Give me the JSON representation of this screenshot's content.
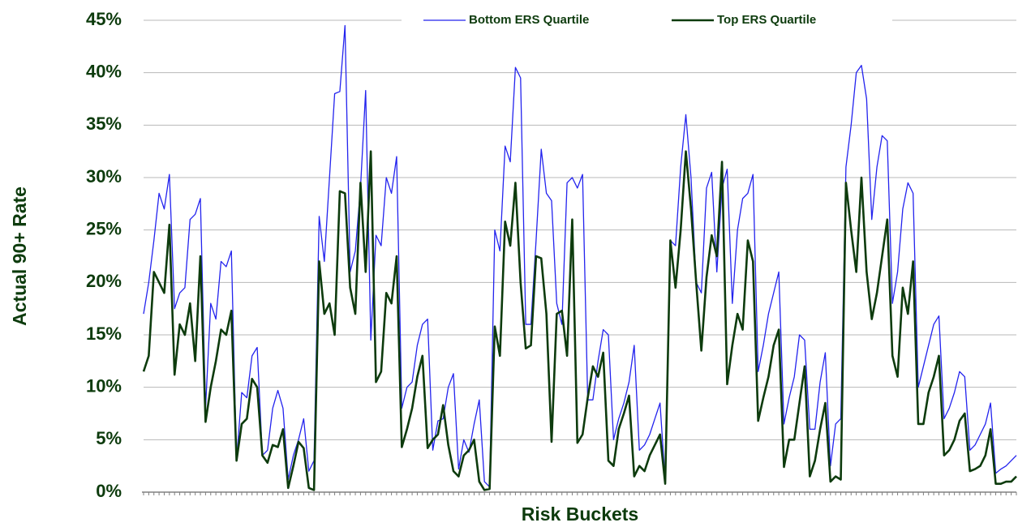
{
  "chart_data": {
    "type": "line",
    "y_axis_label": "Actual 90+ Rate",
    "x_axis_label": "Risk Buckets",
    "legend": "top",
    "grid": true,
    "ylim": [
      0,
      45
    ],
    "yticks": [
      {
        "value": 0,
        "label": "0%"
      },
      {
        "value": 5,
        "label": "5%"
      },
      {
        "value": 10,
        "label": "10%"
      },
      {
        "value": 15,
        "label": "15%"
      },
      {
        "value": 20,
        "label": "20%"
      },
      {
        "value": 25,
        "label": "25%"
      },
      {
        "value": 30,
        "label": "30%"
      },
      {
        "value": 35,
        "label": "35%"
      },
      {
        "value": 40,
        "label": "40%"
      },
      {
        "value": 45,
        "label": "45%"
      }
    ],
    "categories": [
      null,
      null,
      null,
      null,
      null,
      null,
      null,
      null,
      null,
      null,
      null,
      null,
      null,
      null,
      null,
      null,
      null,
      null,
      null,
      null,
      null,
      null,
      null,
      null,
      null,
      null,
      null,
      null,
      null,
      null,
      null,
      null,
      null,
      null,
      null,
      null,
      null,
      null,
      null,
      null,
      null,
      null,
      null,
      null,
      null,
      null,
      null,
      null,
      null,
      null,
      null,
      null,
      null,
      null,
      null,
      null,
      null,
      null,
      null,
      null,
      null,
      null,
      null,
      null,
      null,
      null,
      null,
      null,
      null,
      null,
      null,
      null,
      null,
      null,
      null,
      null,
      null,
      null,
      null,
      null,
      null,
      null,
      null,
      null,
      null,
      null,
      null,
      null,
      null,
      null,
      null,
      null,
      null,
      null,
      null,
      null,
      null,
      null,
      null,
      null,
      null,
      null,
      null,
      null,
      null,
      null,
      null,
      null,
      null,
      null,
      null,
      null,
      null,
      null,
      null,
      null,
      null,
      null,
      null,
      null,
      null,
      null,
      null,
      null,
      null,
      null,
      null,
      null,
      null,
      null,
      null,
      null,
      null,
      null,
      null,
      null,
      null,
      null,
      null,
      null,
      null,
      null,
      null,
      null,
      null,
      null,
      null,
      null,
      null,
      null,
      null,
      null,
      null,
      null,
      null,
      null,
      null,
      null,
      null,
      null,
      null,
      null,
      null,
      null,
      null,
      null,
      null,
      null,
      null,
      null
    ],
    "series": [
      {
        "name": "Bottom ERS Quartile",
        "color": "#2323ee",
        "width": 1.3,
        "values": [
          17,
          20,
          24,
          28.5,
          27,
          30.3,
          17.5,
          19,
          19.5,
          26,
          26.5,
          28,
          8,
          18,
          16.5,
          22,
          21.5,
          23,
          3,
          9.5,
          9,
          13,
          13.8,
          3.5,
          4,
          8,
          9.7,
          8,
          1.2,
          3.5,
          5,
          7,
          2,
          3,
          26.3,
          22,
          30,
          38,
          38.2,
          44.5,
          21,
          23,
          29,
          38.3,
          14.5,
          24.5,
          23.5,
          30,
          28.5,
          32,
          8,
          10,
          10.5,
          14,
          16,
          16.5,
          4,
          6.8,
          7,
          10,
          11.3,
          2.2,
          5,
          3.8,
          6.5,
          8.8,
          1,
          0.5,
          25,
          23,
          33,
          31.5,
          40.5,
          39.5,
          16,
          16,
          24,
          32.7,
          28.5,
          27.8,
          18,
          16,
          29.5,
          30,
          29,
          30.3,
          8.8,
          8.8,
          12.5,
          15.5,
          15,
          5,
          7,
          8.5,
          10.5,
          14,
          4,
          4.5,
          5.5,
          7,
          8.5,
          1,
          24,
          23.5,
          31,
          36,
          30,
          20,
          19,
          29,
          30.5,
          21,
          29,
          30.8,
          18,
          25,
          28,
          28.5,
          30.3,
          11.5,
          14,
          17,
          19,
          21,
          6.5,
          9,
          11,
          15,
          14.5,
          6,
          6,
          10.5,
          13.3,
          2.5,
          6.5,
          7,
          31,
          35,
          40,
          40.7,
          37.5,
          26,
          31,
          34,
          33.5,
          18,
          21,
          27,
          29.5,
          28.5,
          10,
          12,
          14,
          16,
          16.8,
          7,
          8,
          9.5,
          11.5,
          11,
          4,
          4.5,
          5.5,
          6.5,
          8.5,
          1.8,
          2.2,
          2.5,
          3,
          3.5
        ]
      },
      {
        "name": "Top ERS Quartile",
        "color": "#0d3b0d",
        "width": 2.6,
        "values": [
          11.5,
          13,
          21,
          20,
          19,
          25.5,
          11.2,
          16,
          15,
          18,
          12.5,
          22.5,
          6.7,
          10,
          12.5,
          15.5,
          15,
          17.3,
          3,
          6.5,
          7,
          10.8,
          10,
          3.5,
          2.8,
          4.5,
          4.3,
          6,
          0.4,
          2.5,
          4.8,
          4.2,
          0.4,
          0.2,
          22,
          17,
          18,
          15,
          28.7,
          28.5,
          19.5,
          17,
          29.5,
          21,
          32.5,
          10.5,
          11.5,
          19,
          18,
          22.5,
          4.3,
          6,
          8,
          11,
          13,
          4.2,
          5,
          5.5,
          8.3,
          4.5,
          2,
          1.5,
          3.5,
          4,
          5,
          1,
          0.2,
          0.3,
          15.8,
          13,
          25.8,
          23.5,
          29.5,
          20,
          13.7,
          14,
          22.5,
          22.3,
          17,
          4.8,
          17,
          17.3,
          13,
          26,
          4.7,
          5.5,
          9,
          12,
          11,
          13.3,
          3,
          2.5,
          6,
          7.5,
          9.2,
          1.5,
          2.5,
          2,
          3.5,
          4.5,
          5.5,
          0.8,
          24,
          19.5,
          25,
          32.5,
          27,
          20,
          13.5,
          20.5,
          24.5,
          22.5,
          31.5,
          10.3,
          14,
          17,
          15.5,
          24,
          22,
          6.8,
          9,
          11,
          14,
          15.5,
          2.4,
          5,
          5,
          8.5,
          12,
          1.5,
          3,
          6,
          8.5,
          1,
          1.5,
          1.2,
          29.5,
          25,
          21,
          30,
          21,
          16.5,
          19,
          22.5,
          26,
          13,
          11,
          19.5,
          17,
          22,
          6.5,
          6.5,
          9.5,
          11,
          13,
          3.5,
          4,
          5,
          6.8,
          7.5,
          2,
          2.2,
          2.5,
          3.5,
          6,
          0.8,
          0.8,
          1,
          1,
          1.5
        ]
      }
    ]
  }
}
